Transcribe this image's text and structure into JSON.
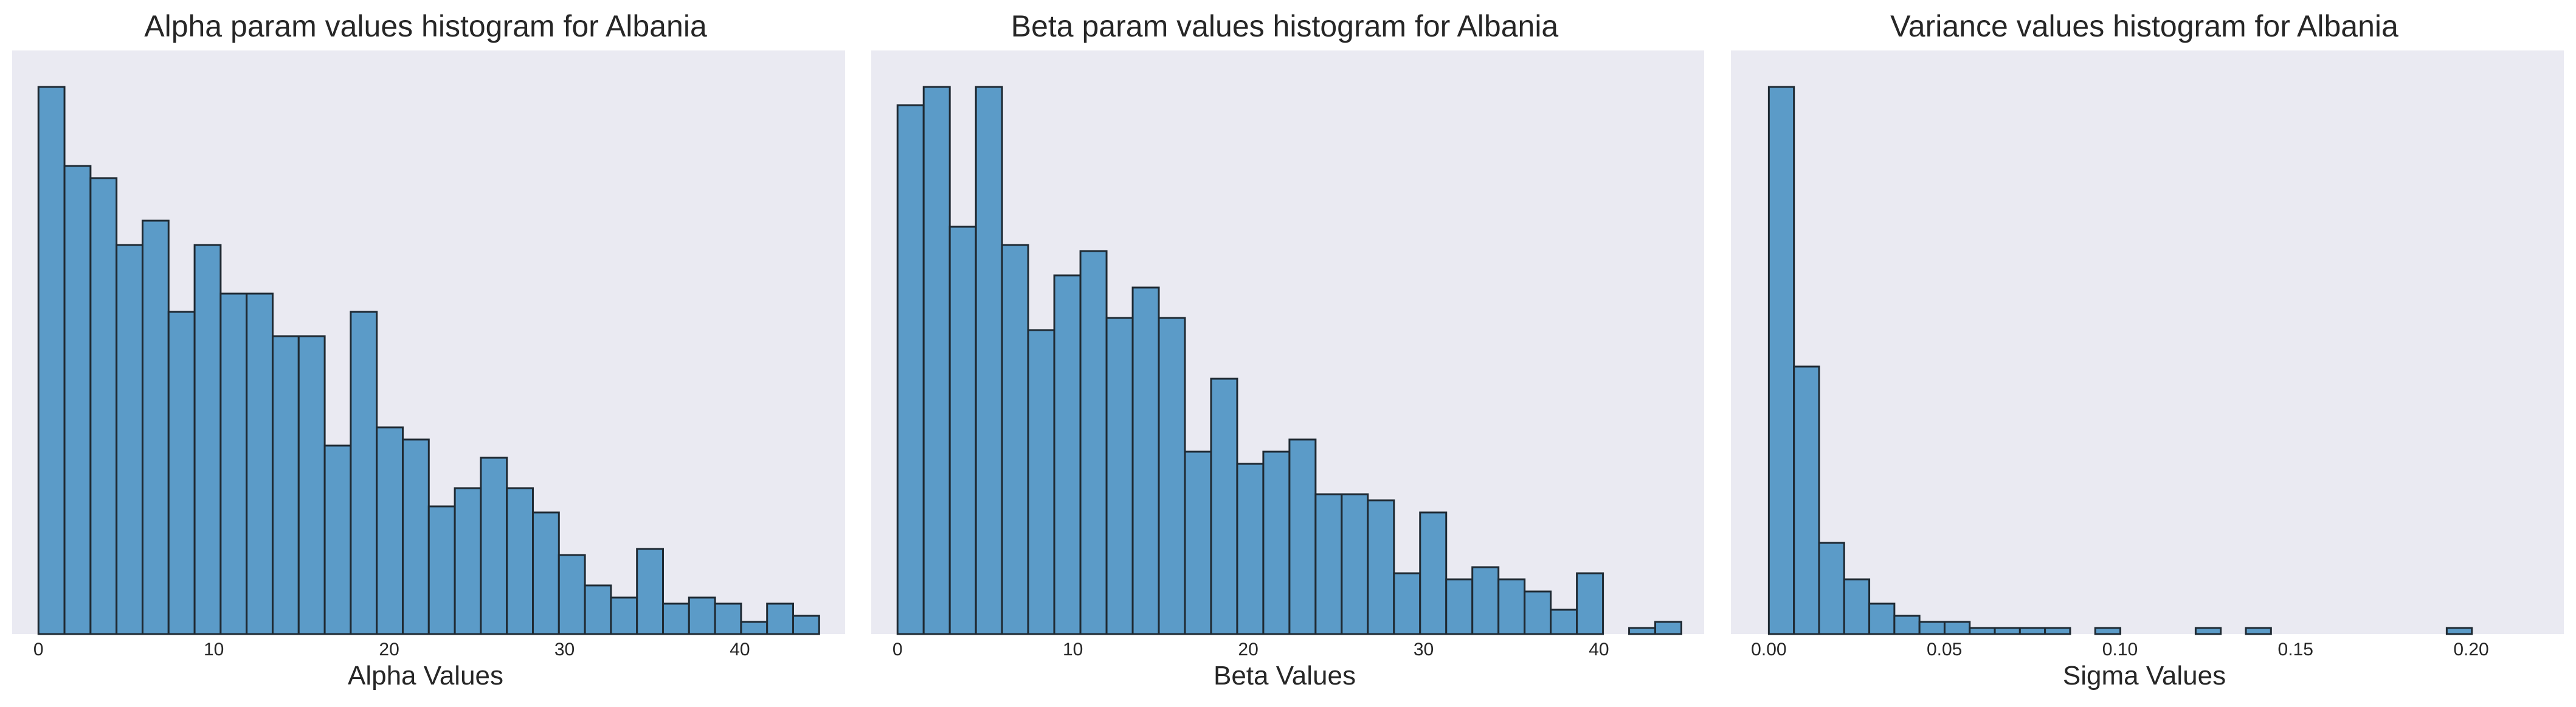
{
  "chart_data": [
    {
      "type": "bar",
      "title": "Alpha param values histogram for Albania",
      "xlabel": "Alpha Values",
      "ylabel": "",
      "grid": false,
      "xlim": [
        -1.5,
        46
      ],
      "ylim": [
        0,
        96
      ],
      "xticks": [
        0,
        10,
        20,
        30,
        40
      ],
      "xtick_labels": [
        "0",
        "10",
        "20",
        "30",
        "40"
      ],
      "bin_edges": [
        0,
        1.484,
        2.968,
        4.452,
        5.936,
        7.42,
        8.904,
        10.388,
        11.872,
        13.356,
        14.84,
        16.324,
        17.808,
        19.292,
        20.776,
        22.26,
        23.744,
        25.228,
        26.712,
        28.196,
        29.68,
        31.164,
        32.648,
        34.132,
        35.616,
        37.1,
        38.584,
        40.068,
        41.552,
        43.036,
        44.52
      ],
      "values": [
        90,
        77,
        75,
        64,
        68,
        53,
        64,
        56,
        56,
        49,
        49,
        31,
        53,
        34,
        32,
        21,
        24,
        29,
        24,
        20,
        13,
        8,
        6,
        14,
        5,
        6,
        5,
        2,
        5,
        3
      ]
    },
    {
      "type": "bar",
      "title": "Beta param values histogram for Albania",
      "xlabel": "Beta Values",
      "ylabel": "",
      "grid": false,
      "xlim": [
        -1.5,
        46
      ],
      "ylim": [
        0,
        96
      ],
      "xticks": [
        0,
        10,
        20,
        30,
        40
      ],
      "xtick_labels": [
        "0",
        "10",
        "20",
        "30",
        "40"
      ],
      "bin_edges": [
        0,
        1.49,
        2.98,
        4.47,
        5.96,
        7.45,
        8.94,
        10.43,
        11.92,
        13.41,
        14.9,
        16.39,
        17.88,
        19.37,
        20.86,
        22.35,
        23.84,
        25.33,
        26.82,
        28.31,
        29.8,
        31.29,
        32.78,
        34.27,
        35.76,
        37.25,
        38.74,
        40.23,
        41.72,
        43.21,
        44.7
      ],
      "values": [
        87,
        90,
        67,
        90,
        64,
        50,
        59,
        63,
        52,
        57,
        52,
        30,
        42,
        28,
        30,
        32,
        23,
        23,
        22,
        10,
        20,
        9,
        11,
        9,
        7,
        4,
        10,
        0,
        1,
        2
      ]
    },
    {
      "type": "bar",
      "title": "Variance values histogram for Albania",
      "xlabel": "Sigma Values",
      "ylabel": "",
      "grid": false,
      "xlim": [
        -0.0108,
        0.2264
      ],
      "ylim": [
        0,
        96
      ],
      "xticks": [
        0,
        0.05,
        0.1,
        0.15,
        0.2
      ],
      "xtick_labels": [
        "0.00",
        "0.05",
        "0.10",
        "0.15",
        "0.20"
      ],
      "bin_edges": [
        0,
        0.00715,
        0.0143,
        0.02145,
        0.0286,
        0.03575,
        0.0429,
        0.05005,
        0.0572,
        0.06435,
        0.0715,
        0.07865,
        0.0858,
        0.09295,
        0.1001,
        0.10725,
        0.1144,
        0.12155,
        0.1287,
        0.13585,
        0.143,
        0.15015,
        0.1573,
        0.16445,
        0.1716,
        0.17875,
        0.1859,
        0.19305,
        0.2002,
        0.20735,
        0.2145
      ],
      "values": [
        90,
        44,
        15,
        9,
        5,
        3,
        2,
        2,
        1,
        1,
        1,
        1,
        0,
        1,
        0,
        0,
        0,
        1,
        0,
        1,
        0,
        0,
        0,
        0,
        0,
        0,
        0,
        1,
        0,
        0
      ]
    }
  ],
  "colors": {
    "bar_fill": "#5b9bc8",
    "bar_edge": "#1f2a33",
    "plot_background": "#eaeaf2"
  }
}
